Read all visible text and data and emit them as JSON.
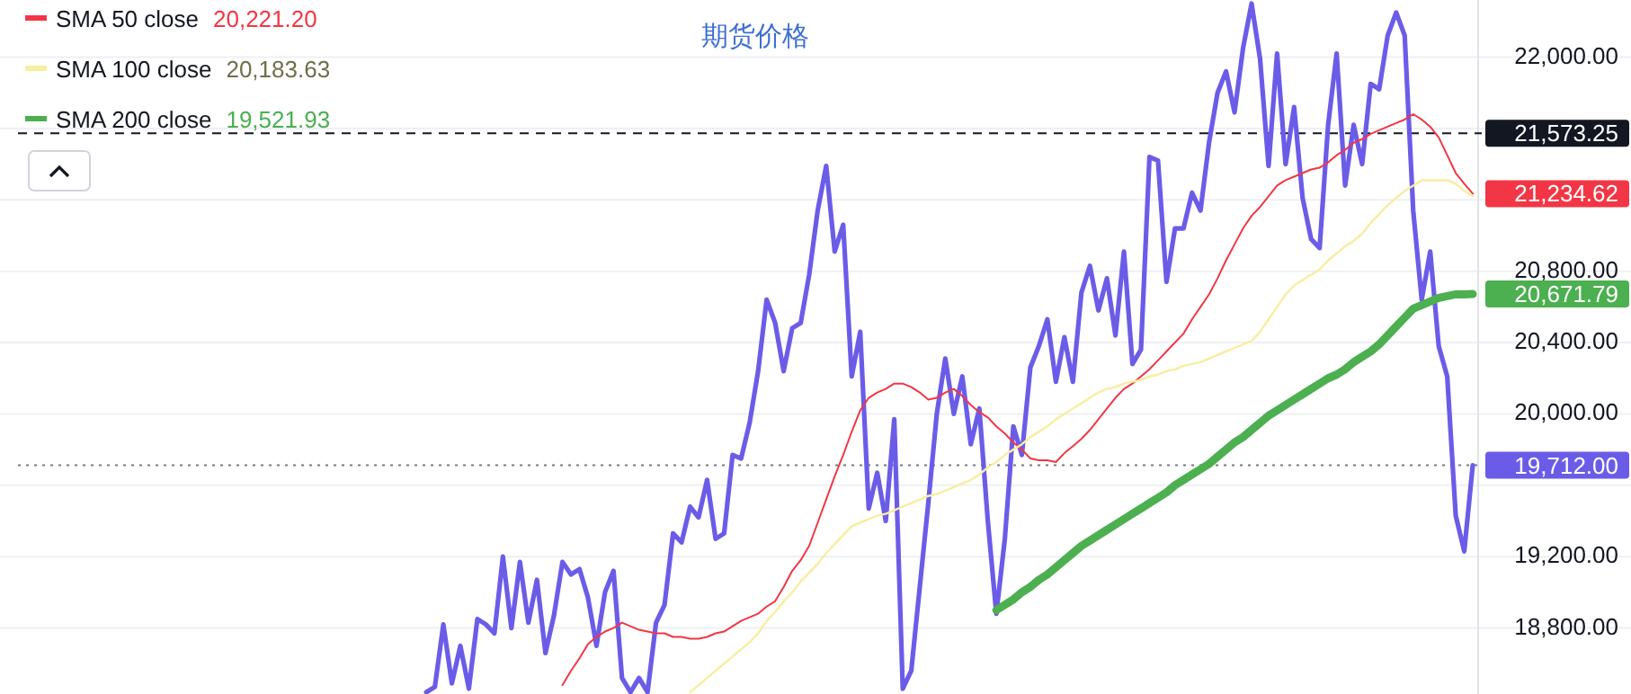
{
  "chart_data": {
    "type": "line",
    "title": "期货价格",
    "categories": [
      null,
      null,
      null,
      null,
      null,
      null,
      null,
      null,
      null,
      null,
      null,
      null,
      null,
      null,
      null,
      null,
      null,
      null,
      null,
      null,
      null,
      null,
      null,
      null,
      null,
      null,
      null,
      null,
      null,
      null,
      null,
      null,
      null,
      null,
      null,
      null,
      null,
      null,
      null,
      null,
      null,
      null,
      null,
      null,
      null,
      null,
      null,
      null,
      null,
      null,
      null,
      null,
      null,
      null,
      null,
      null,
      null,
      null,
      null,
      null,
      null,
      null,
      null,
      null,
      null,
      null,
      null,
      null,
      null,
      null,
      null,
      null,
      null,
      null,
      null,
      null,
      null,
      null,
      null,
      null,
      null,
      null,
      null,
      null,
      null,
      null,
      null,
      null,
      null,
      null,
      null,
      null,
      null,
      null,
      null,
      null,
      null,
      null,
      null,
      null,
      null,
      null,
      null,
      null,
      null,
      null,
      null,
      null,
      null,
      null,
      null,
      null,
      null,
      null,
      null,
      null,
      null,
      null,
      null,
      null,
      null,
      null,
      null,
      null,
      null,
      null,
      null,
      null,
      null,
      null,
      null,
      null,
      null,
      null,
      null,
      null,
      null,
      null,
      null,
      null,
      null,
      null,
      null,
      null,
      null,
      null,
      null,
      null,
      null,
      null,
      null,
      null,
      null,
      null,
      null,
      null,
      null,
      null,
      null,
      null,
      null,
      null,
      null,
      null,
      null,
      null,
      null,
      null,
      null,
      null,
      null,
      null
    ],
    "series": [
      {
        "color": "#6b5ce8",
        "values": [
          null,
          null,
          null,
          null,
          null,
          null,
          null,
          null,
          null,
          null,
          null,
          null,
          null,
          null,
          null,
          null,
          null,
          null,
          null,
          null,
          null,
          null,
          null,
          null,
          null,
          null,
          null,
          null,
          null,
          null,
          null,
          null,
          null,
          null,
          null,
          null,
          null,
          null,
          null,
          null,
          null,
          null,
          null,
          null,
          null,
          null,
          null,
          null,
          18440,
          18470,
          18820,
          18490,
          18700,
          18460,
          18850,
          18820,
          18770,
          19200,
          18800,
          19170,
          18830,
          19070,
          18660,
          18870,
          19170,
          19100,
          19130,
          18970,
          18700,
          19000,
          19120,
          18520,
          18440,
          18520,
          18440,
          18830,
          18930,
          19330,
          19280,
          19480,
          19420,
          19630,
          19300,
          19330,
          19770,
          19750,
          19950,
          20240,
          20640,
          20510,
          20240,
          20480,
          20510,
          20780,
          21140,
          21390,
          20910,
          21060,
          20210,
          20460,
          19470,
          19670,
          19400,
          19970,
          18460,
          18560,
          19030,
          19500,
          20000,
          20310,
          20000,
          20210,
          19830,
          20030,
          19400,
          18880,
          19300,
          19930,
          19770,
          20260,
          20380,
          20530,
          20180,
          20430,
          20180,
          20680,
          20830,
          20580,
          20760,
          20440,
          20910,
          20280,
          20360,
          21440,
          21420,
          20740,
          21040,
          21040,
          21240,
          21140,
          21520,
          21800,
          21920,
          21690,
          22050,
          22300,
          21990,
          21390,
          22020,
          21400,
          21720,
          21210,
          20980,
          20930,
          21620,
          22020,
          21280,
          21620,
          21400,
          21850,
          21820,
          22120,
          22250,
          22120,
          21140,
          20640,
          20910,
          20380,
          20210,
          19430,
          19230,
          19712
        ],
        "value_labels": [
          null,
          null,
          null,
          null,
          null,
          null,
          null,
          null,
          null,
          null,
          null,
          null,
          null,
          null,
          null,
          null,
          null,
          null,
          null,
          null,
          null,
          null,
          null,
          null,
          null,
          null,
          null,
          null,
          null,
          null,
          null,
          null,
          null,
          null,
          null,
          null,
          null,
          null,
          null,
          null,
          null,
          null,
          null,
          null,
          null,
          null,
          null,
          null,
          null,
          null,
          null,
          null,
          null,
          null,
          null,
          null,
          null,
          null,
          null,
          null,
          null,
          null,
          null,
          null,
          null,
          null,
          null,
          null,
          null,
          null,
          null,
          null,
          null,
          null,
          null,
          null,
          null,
          null,
          null,
          null,
          null,
          null,
          null,
          null,
          null,
          null,
          null,
          null,
          null,
          null,
          null,
          null,
          null,
          null,
          null,
          null,
          null,
          null,
          null,
          null,
          null,
          null,
          null,
          null,
          null,
          null,
          null,
          null,
          null,
          null,
          null,
          null,
          null,
          null,
          null,
          null,
          null,
          null,
          null,
          null,
          null,
          null,
          null,
          null,
          null,
          null,
          null,
          null,
          null,
          null,
          null,
          null,
          null,
          null,
          null,
          null,
          null,
          null,
          null,
          null,
          null,
          null,
          null,
          null,
          null,
          null,
          null,
          null,
          null,
          null,
          null,
          null,
          null,
          null,
          null,
          null,
          null,
          null,
          null,
          null,
          null,
          null,
          null,
          null,
          null,
          null,
          null,
          null,
          null,
          null,
          null,
          "19,712.00"
        ]
      },
      {
        "name": "SMA 50 close",
        "color": "#f23645",
        "values": [
          null,
          null,
          null,
          null,
          null,
          null,
          null,
          null,
          null,
          null,
          null,
          null,
          null,
          null,
          null,
          null,
          null,
          null,
          null,
          null,
          null,
          null,
          null,
          null,
          null,
          null,
          null,
          null,
          null,
          null,
          null,
          null,
          null,
          null,
          null,
          null,
          null,
          null,
          null,
          null,
          null,
          null,
          null,
          null,
          null,
          null,
          null,
          null,
          null,
          null,
          null,
          null,
          null,
          null,
          null,
          null,
          null,
          null,
          null,
          null,
          null,
          null,
          null,
          null,
          18480,
          18560,
          18630,
          18710,
          18750,
          18780,
          18800,
          18830,
          18810,
          18790,
          18780,
          18770,
          18770,
          18750,
          18750,
          18740,
          18740,
          18750,
          18770,
          18780,
          18810,
          18840,
          18860,
          18880,
          18920,
          18950,
          19030,
          19120,
          19180,
          19260,
          19390,
          19520,
          19650,
          19770,
          19900,
          20020,
          20090,
          20120,
          20140,
          20170,
          20170,
          20150,
          20120,
          20080,
          20090,
          20120,
          20140,
          20100,
          20050,
          20010,
          19980,
          19930,
          19890,
          19840,
          19800,
          19750,
          19740,
          19740,
          19730,
          19780,
          19820,
          19860,
          19910,
          19970,
          20030,
          20090,
          20140,
          20170,
          20210,
          20250,
          20300,
          20350,
          20400,
          20450,
          20530,
          20600,
          20670,
          20760,
          20860,
          20950,
          21040,
          21110,
          21160,
          21220,
          21280,
          21310,
          21330,
          21350,
          21370,
          21380,
          21410,
          21450,
          21480,
          21520,
          21540,
          21570,
          21590,
          21610,
          21630,
          21650,
          21680,
          21650,
          21610,
          21550,
          21450,
          21350,
          21290,
          21234.62
        ],
        "value_labels": [
          null,
          null,
          null,
          null,
          null,
          null,
          null,
          null,
          null,
          null,
          null,
          null,
          null,
          null,
          null,
          null,
          null,
          null,
          null,
          null,
          null,
          null,
          null,
          null,
          null,
          null,
          null,
          null,
          null,
          null,
          null,
          null,
          null,
          null,
          null,
          null,
          null,
          null,
          null,
          null,
          null,
          null,
          null,
          null,
          null,
          null,
          null,
          null,
          null,
          null,
          null,
          null,
          null,
          null,
          null,
          null,
          null,
          null,
          null,
          null,
          null,
          null,
          null,
          null,
          null,
          null,
          null,
          null,
          null,
          null,
          null,
          null,
          null,
          null,
          null,
          null,
          null,
          null,
          null,
          null,
          null,
          null,
          null,
          null,
          null,
          null,
          null,
          null,
          null,
          null,
          null,
          null,
          null,
          null,
          null,
          null,
          null,
          null,
          null,
          null,
          null,
          null,
          null,
          null,
          null,
          null,
          null,
          null,
          null,
          null,
          null,
          null,
          null,
          null,
          null,
          null,
          null,
          null,
          null,
          null,
          null,
          null,
          null,
          null,
          null,
          null,
          null,
          null,
          null,
          null,
          null,
          null,
          null,
          null,
          null,
          null,
          null,
          null,
          null,
          null,
          null,
          null,
          null,
          null,
          null,
          null,
          null,
          null,
          null,
          null,
          null,
          null,
          null,
          null,
          null,
          null,
          null,
          null,
          null,
          null,
          null,
          null,
          null,
          null,
          null,
          null,
          null,
          null,
          null,
          null,
          null,
          "21,234.62"
        ]
      },
      {
        "name": "SMA 100 close",
        "color": "#f7eea0",
        "values": [
          null,
          null,
          null,
          null,
          null,
          null,
          null,
          null,
          null,
          null,
          null,
          null,
          null,
          null,
          null,
          null,
          null,
          null,
          null,
          null,
          null,
          null,
          null,
          null,
          null,
          null,
          null,
          null,
          null,
          null,
          null,
          null,
          null,
          null,
          null,
          null,
          null,
          null,
          null,
          null,
          null,
          null,
          null,
          null,
          null,
          null,
          null,
          null,
          null,
          null,
          null,
          null,
          null,
          null,
          null,
          null,
          null,
          null,
          null,
          null,
          null,
          null,
          null,
          null,
          null,
          null,
          null,
          null,
          null,
          null,
          null,
          null,
          null,
          null,
          null,
          null,
          null,
          null,
          null,
          18440,
          18480,
          18520,
          18560,
          18600,
          18640,
          18680,
          18720,
          18770,
          18840,
          18890,
          18950,
          19000,
          19060,
          19110,
          19160,
          19220,
          19270,
          19320,
          19370,
          19390,
          19410,
          19430,
          19440,
          19460,
          19480,
          19500,
          19520,
          19540,
          19550,
          19570,
          19590,
          19610,
          19630,
          19660,
          19700,
          19730,
          19770,
          19800,
          19830,
          19870,
          19900,
          19930,
          19970,
          20000,
          20030,
          20060,
          20090,
          20120,
          20140,
          20150,
          20170,
          20180,
          20190,
          20210,
          20220,
          20240,
          20250,
          20270,
          20280,
          20290,
          20310,
          20330,
          20350,
          20370,
          20390,
          20410,
          20460,
          20530,
          20600,
          20670,
          20720,
          20750,
          20780,
          20810,
          20860,
          20900,
          20940,
          20970,
          21010,
          21070,
          21120,
          21170,
          21210,
          21250,
          21280,
          21310,
          21310,
          21310,
          21310,
          21290,
          21250,
          21220
        ]
      },
      {
        "name": "SMA 200 close",
        "color": "#4caf50",
        "values": [
          null,
          null,
          null,
          null,
          null,
          null,
          null,
          null,
          null,
          null,
          null,
          null,
          null,
          null,
          null,
          null,
          null,
          null,
          null,
          null,
          null,
          null,
          null,
          null,
          null,
          null,
          null,
          null,
          null,
          null,
          null,
          null,
          null,
          null,
          null,
          null,
          null,
          null,
          null,
          null,
          null,
          null,
          null,
          null,
          null,
          null,
          null,
          null,
          null,
          null,
          null,
          null,
          null,
          null,
          null,
          null,
          null,
          null,
          null,
          null,
          null,
          null,
          null,
          null,
          null,
          null,
          null,
          null,
          null,
          null,
          null,
          null,
          null,
          null,
          null,
          null,
          null,
          null,
          null,
          null,
          null,
          null,
          null,
          null,
          null,
          null,
          null,
          null,
          null,
          null,
          null,
          null,
          null,
          null,
          null,
          null,
          null,
          null,
          null,
          null,
          null,
          null,
          null,
          null,
          null,
          null,
          null,
          null,
          null,
          null,
          null,
          null,
          null,
          null,
          null,
          18900,
          18930,
          18960,
          19000,
          19030,
          19070,
          19100,
          19140,
          19180,
          19220,
          19260,
          19290,
          19320,
          19350,
          19380,
          19410,
          19440,
          19470,
          19500,
          19530,
          19560,
          19600,
          19630,
          19660,
          19690,
          19720,
          19760,
          19800,
          19840,
          19870,
          19910,
          19950,
          19990,
          20020,
          20050,
          20080,
          20110,
          20140,
          20170,
          20200,
          20220,
          20250,
          20290,
          20320,
          20350,
          20390,
          20440,
          20490,
          20540,
          20590,
          20610,
          20630,
          20650,
          20660,
          20670,
          20670,
          20671.79
        ],
        "value_labels": [
          null,
          null,
          null,
          null,
          null,
          null,
          null,
          null,
          null,
          null,
          null,
          null,
          null,
          null,
          null,
          null,
          null,
          null,
          null,
          null,
          null,
          null,
          null,
          null,
          null,
          null,
          null,
          null,
          null,
          null,
          null,
          null,
          null,
          null,
          null,
          null,
          null,
          null,
          null,
          null,
          null,
          null,
          null,
          null,
          null,
          null,
          null,
          null,
          null,
          null,
          null,
          null,
          null,
          null,
          null,
          null,
          null,
          null,
          null,
          null,
          null,
          null,
          null,
          null,
          null,
          null,
          null,
          null,
          null,
          null,
          null,
          null,
          null,
          null,
          null,
          null,
          null,
          null,
          null,
          null,
          null,
          null,
          null,
          null,
          null,
          null,
          null,
          null,
          null,
          null,
          null,
          null,
          null,
          null,
          null,
          null,
          null,
          null,
          null,
          null,
          null,
          null,
          null,
          null,
          null,
          null,
          null,
          null,
          null,
          null,
          null,
          null,
          null,
          null,
          null,
          null,
          null,
          null,
          null,
          null,
          null,
          null,
          null,
          null,
          null,
          null,
          null,
          null,
          null,
          null,
          null,
          null,
          null,
          null,
          null,
          null,
          null,
          null,
          null,
          null,
          null,
          null,
          null,
          null,
          null,
          null,
          null,
          null,
          null,
          null,
          null,
          null,
          null,
          null,
          null,
          null,
          null,
          null,
          null,
          null,
          null,
          null,
          null,
          null,
          null,
          null,
          null,
          null,
          null,
          null,
          null,
          "20,671.79"
        ]
      }
    ],
    "annotations": [
      "20,221.20",
      "20,183.63",
      "19,521.93"
    ],
    "ylim": [
      18430,
      22320
    ],
    "yticks": [
      {
        "value": 18800,
        "label": "18,800.00"
      },
      {
        "value": 19200,
        "label": "19,200.00"
      },
      {
        "value": 19600,
        "label": null
      },
      {
        "value": 20000,
        "label": "20,000.00"
      },
      {
        "value": 20400,
        "label": "20,400.00"
      },
      {
        "value": 20800,
        "label": "20,800.00"
      },
      {
        "value": 21200,
        "label": null
      },
      {
        "value": 21600,
        "label": null
      },
      {
        "value": 22000,
        "label": "22,000.00"
      }
    ],
    "grid": "y",
    "legend": "top left",
    "ref_lines": [
      {
        "axis": "y",
        "value": 21573.25,
        "label": "21,573.25",
        "color": "#131722",
        "line_style": "dashed"
      },
      {
        "axis": "y",
        "value": 19712,
        "color": "#787b86",
        "line_style": "dotted"
      }
    ]
  }
}
